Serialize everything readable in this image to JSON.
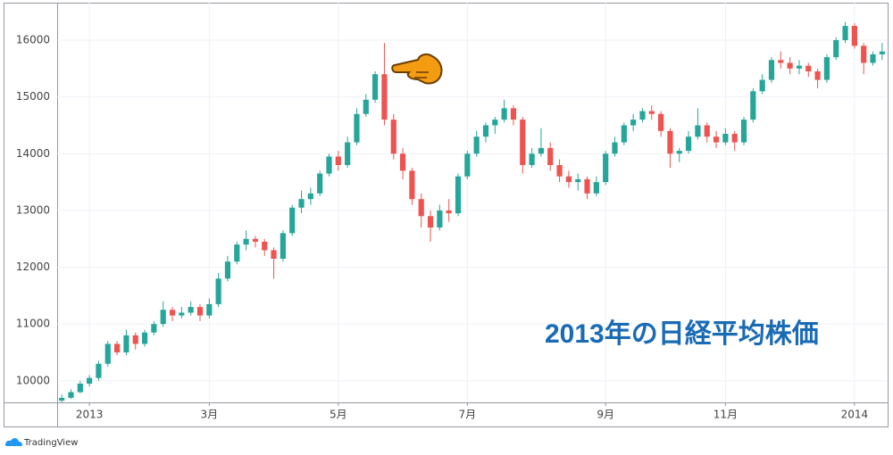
{
  "chart_data": {
    "type": "candlestick",
    "annotation": "2013年の日経平均株価",
    "brand": "TradingView",
    "up_color": "#26a69a",
    "down_color": "#ef5350",
    "grid": true,
    "ylim": [
      9620,
      16660
    ],
    "yticks": [
      10000,
      11000,
      12000,
      13000,
      14000,
      15000,
      16000
    ],
    "categories": [
      null,
      null,
      null,
      "2013",
      null,
      null,
      null,
      null,
      null,
      null,
      null,
      null,
      null,
      null,
      null,
      null,
      "3月",
      null,
      null,
      null,
      null,
      null,
      null,
      null,
      null,
      null,
      null,
      null,
      null,
      null,
      "5月",
      null,
      null,
      null,
      null,
      null,
      null,
      null,
      null,
      null,
      null,
      null,
      null,
      null,
      "7月",
      null,
      null,
      null,
      null,
      null,
      null,
      null,
      null,
      null,
      null,
      null,
      null,
      null,
      null,
      "9月",
      null,
      null,
      null,
      null,
      null,
      null,
      null,
      null,
      null,
      null,
      null,
      null,
      "11月",
      null,
      null,
      null,
      null,
      null,
      null,
      null,
      null,
      null,
      null,
      null,
      null,
      null,
      "2014",
      null,
      null,
      null
    ],
    "values": [
      [
        9650,
        9760,
        9620,
        9700
      ],
      [
        9700,
        9850,
        9680,
        9800
      ],
      [
        9800,
        10000,
        9780,
        9950
      ],
      [
        9950,
        10100,
        9900,
        10050
      ],
      [
        10050,
        10350,
        10000,
        10300
      ],
      [
        10300,
        10700,
        10250,
        10650
      ],
      [
        10650,
        10700,
        10450,
        10500
      ],
      [
        10500,
        10900,
        10450,
        10800
      ],
      [
        10800,
        10850,
        10550,
        10650
      ],
      [
        10650,
        10900,
        10600,
        10850
      ],
      [
        10850,
        11050,
        10800,
        11000
      ],
      [
        11000,
        11400,
        10950,
        11250
      ],
      [
        11250,
        11300,
        11050,
        11150
      ],
      [
        11150,
        11300,
        11100,
        11200
      ],
      [
        11200,
        11400,
        11150,
        11300
      ],
      [
        11300,
        11350,
        11050,
        11150
      ],
      [
        11150,
        11450,
        11100,
        11350
      ],
      [
        11350,
        11900,
        11300,
        11800
      ],
      [
        11800,
        12200,
        11750,
        12100
      ],
      [
        12100,
        12450,
        12050,
        12400
      ],
      [
        12400,
        12650,
        12300,
        12500
      ],
      [
        12500,
        12550,
        12350,
        12450
      ],
      [
        12450,
        12500,
        12200,
        12300
      ],
      [
        12300,
        12350,
        11800,
        12150
      ],
      [
        12150,
        12650,
        12100,
        12600
      ],
      [
        12600,
        13100,
        12550,
        13050
      ],
      [
        13050,
        13350,
        12950,
        13200
      ],
      [
        13200,
        13400,
        13100,
        13300
      ],
      [
        13300,
        13700,
        13250,
        13650
      ],
      [
        13650,
        14000,
        13600,
        13950
      ],
      [
        13950,
        14050,
        13700,
        13800
      ],
      [
        13800,
        14300,
        13750,
        14200
      ],
      [
        14200,
        14800,
        14150,
        14700
      ],
      [
        14700,
        15050,
        14650,
        14950
      ],
      [
        14950,
        15450,
        14900,
        15400
      ],
      [
        15400,
        15950,
        14500,
        14600
      ],
      [
        14600,
        14700,
        13900,
        14000
      ],
      [
        14000,
        14100,
        13550,
        13700
      ],
      [
        13700,
        13750,
        13100,
        13200
      ],
      [
        13200,
        13300,
        12700,
        12900
      ],
      [
        12900,
        13000,
        12450,
        12700
      ],
      [
        12700,
        13100,
        12650,
        13000
      ],
      [
        13000,
        13200,
        12800,
        12950
      ],
      [
        12950,
        13650,
        12900,
        13600
      ],
      [
        13600,
        14050,
        13550,
        14000
      ],
      [
        14000,
        14400,
        13950,
        14300
      ],
      [
        14300,
        14550,
        14200,
        14500
      ],
      [
        14500,
        14650,
        14350,
        14600
      ],
      [
        14600,
        14950,
        14550,
        14800
      ],
      [
        14800,
        14850,
        14500,
        14600
      ],
      [
        14600,
        14650,
        13650,
        13800
      ],
      [
        13800,
        14100,
        13750,
        14000
      ],
      [
        14000,
        14450,
        13950,
        14100
      ],
      [
        14100,
        14200,
        13700,
        13800
      ],
      [
        13800,
        13900,
        13500,
        13600
      ],
      [
        13600,
        13700,
        13400,
        13500
      ],
      [
        13500,
        13650,
        13350,
        13550
      ],
      [
        13550,
        13600,
        13200,
        13300
      ],
      [
        13300,
        13600,
        13250,
        13500
      ],
      [
        13500,
        14050,
        13450,
        14000
      ],
      [
        14000,
        14300,
        13950,
        14200
      ],
      [
        14200,
        14550,
        14150,
        14500
      ],
      [
        14500,
        14700,
        14400,
        14600
      ],
      [
        14600,
        14800,
        14550,
        14750
      ],
      [
        14750,
        14850,
        14600,
        14700
      ],
      [
        14700,
        14750,
        14300,
        14400
      ],
      [
        14400,
        14450,
        13750,
        14000
      ],
      [
        14000,
        14100,
        13850,
        14050
      ],
      [
        14050,
        14400,
        14000,
        14300
      ],
      [
        14300,
        14800,
        14250,
        14500
      ],
      [
        14500,
        14550,
        14200,
        14300
      ],
      [
        14300,
        14400,
        14100,
        14200
      ],
      [
        14200,
        14450,
        14150,
        14350
      ],
      [
        14350,
        14400,
        14050,
        14200
      ],
      [
        14200,
        14650,
        14150,
        14600
      ],
      [
        14600,
        15150,
        14550,
        15100
      ],
      [
        15100,
        15400,
        15050,
        15300
      ],
      [
        15300,
        15700,
        15250,
        15650
      ],
      [
        15650,
        15800,
        15500,
        15600
      ],
      [
        15600,
        15700,
        15400,
        15500
      ],
      [
        15500,
        15650,
        15400,
        15550
      ],
      [
        15550,
        15600,
        15350,
        15450
      ],
      [
        15450,
        15500,
        15150,
        15300
      ],
      [
        15300,
        15750,
        15250,
        15700
      ],
      [
        15700,
        16050,
        15650,
        16000
      ],
      [
        16000,
        16320,
        15950,
        16250
      ],
      [
        16250,
        16300,
        15850,
        15900
      ],
      [
        15900,
        15950,
        15400,
        15600
      ],
      [
        15600,
        15800,
        15550,
        15750
      ],
      [
        15750,
        15950,
        15650,
        15800
      ]
    ]
  }
}
